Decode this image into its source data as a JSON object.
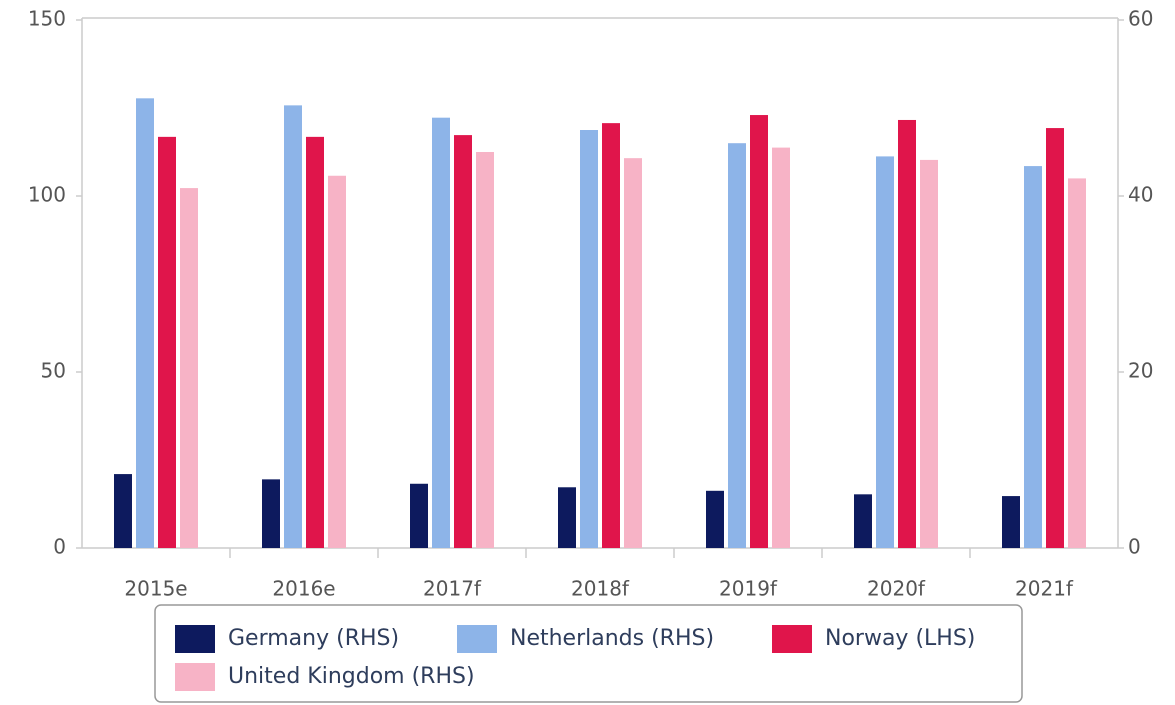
{
  "chart_data": {
    "type": "bar",
    "categories": [
      "2015e",
      "2016e",
      "2017f",
      "2018f",
      "2019f",
      "2020f",
      "2021f"
    ],
    "series": [
      {
        "name": "Germany (RHS)",
        "color": "#0d1a5e",
        "axis": "y2",
        "values": [
          8.4,
          7.8,
          7.3,
          6.9,
          6.5,
          6.1,
          5.9
        ]
      },
      {
        "name": "Netherlands (RHS)",
        "color": "#8db4e8",
        "axis": "y2",
        "values": [
          51.1,
          50.3,
          48.9,
          47.5,
          46.0,
          44.5,
          43.4
        ]
      },
      {
        "name": "Norway (LHS)",
        "color": "#e0154b",
        "values": [
          116.8,
          116.8,
          117.3,
          120.7,
          123.0,
          121.6,
          119.3
        ]
      },
      {
        "name": "United Kingdom (RHS)",
        "color": "#f7b3c6",
        "axis": "y2",
        "values": [
          40.9,
          42.3,
          45.0,
          44.3,
          45.5,
          44.1,
          42.0
        ]
      }
    ],
    "ylim": [
      0,
      150
    ],
    "yticks": [
      0,
      50,
      100,
      150
    ],
    "y2lim": [
      0,
      60
    ],
    "y2ticks": [
      0,
      20,
      40,
      60
    ]
  }
}
